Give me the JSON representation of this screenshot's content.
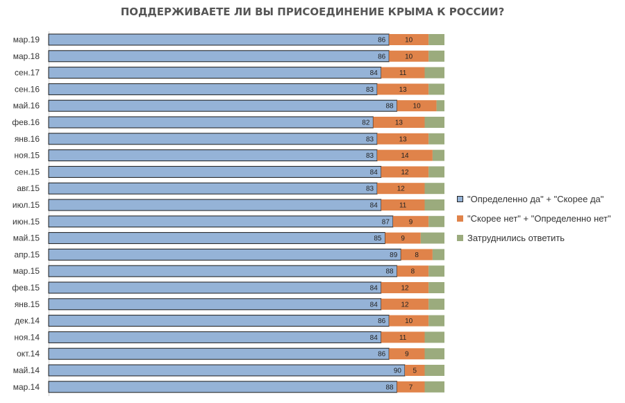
{
  "chart_data": {
    "type": "bar",
    "orientation": "horizontal",
    "stacked": true,
    "stack_mode": "percent",
    "title": "ПОДДЕРЖИВАЕТЕ  ЛИ ВЫ ПРИСОЕДИНЕНИЕ  КРЫМА К РОССИИ?",
    "categories": [
      "мар.19",
      "мар.18",
      "сен.17",
      "сен.16",
      "май.16",
      "фев.16",
      "янв.16",
      "ноя.15",
      "сен.15",
      "авг.15",
      "июл.15",
      "июн.15",
      "май.15",
      "апр.15",
      "мар.15",
      "фев.15",
      "янв.15",
      "дек.14",
      "ноя.14",
      "окт.14",
      "май.14",
      "мар.14"
    ],
    "series": [
      {
        "name": "\"Определенно да\" + \"Скорее да\"",
        "color": "#95b3d7",
        "values": [
          86,
          86,
          84,
          83,
          88,
          82,
          83,
          83,
          84,
          83,
          84,
          87,
          85,
          89,
          88,
          84,
          84,
          86,
          84,
          86,
          90,
          88
        ]
      },
      {
        "name": "\"Скорее нет\" + \"Определенно нет\"",
        "color": "#e0834a",
        "values": [
          10,
          10,
          11,
          13,
          10,
          13,
          13,
          14,
          12,
          12,
          11,
          9,
          9,
          8,
          8,
          12,
          12,
          10,
          11,
          9,
          5,
          7
        ]
      },
      {
        "name": "Затруднились ответить",
        "color": "#9bab7d",
        "values": [
          4,
          4,
          5,
          4,
          2,
          5,
          4,
          3,
          4,
          5,
          5,
          4,
          6,
          3,
          4,
          4,
          4,
          4,
          5,
          5,
          5,
          5
        ]
      }
    ],
    "xlim": [
      0,
      100
    ],
    "legend": "right",
    "grid": false
  }
}
